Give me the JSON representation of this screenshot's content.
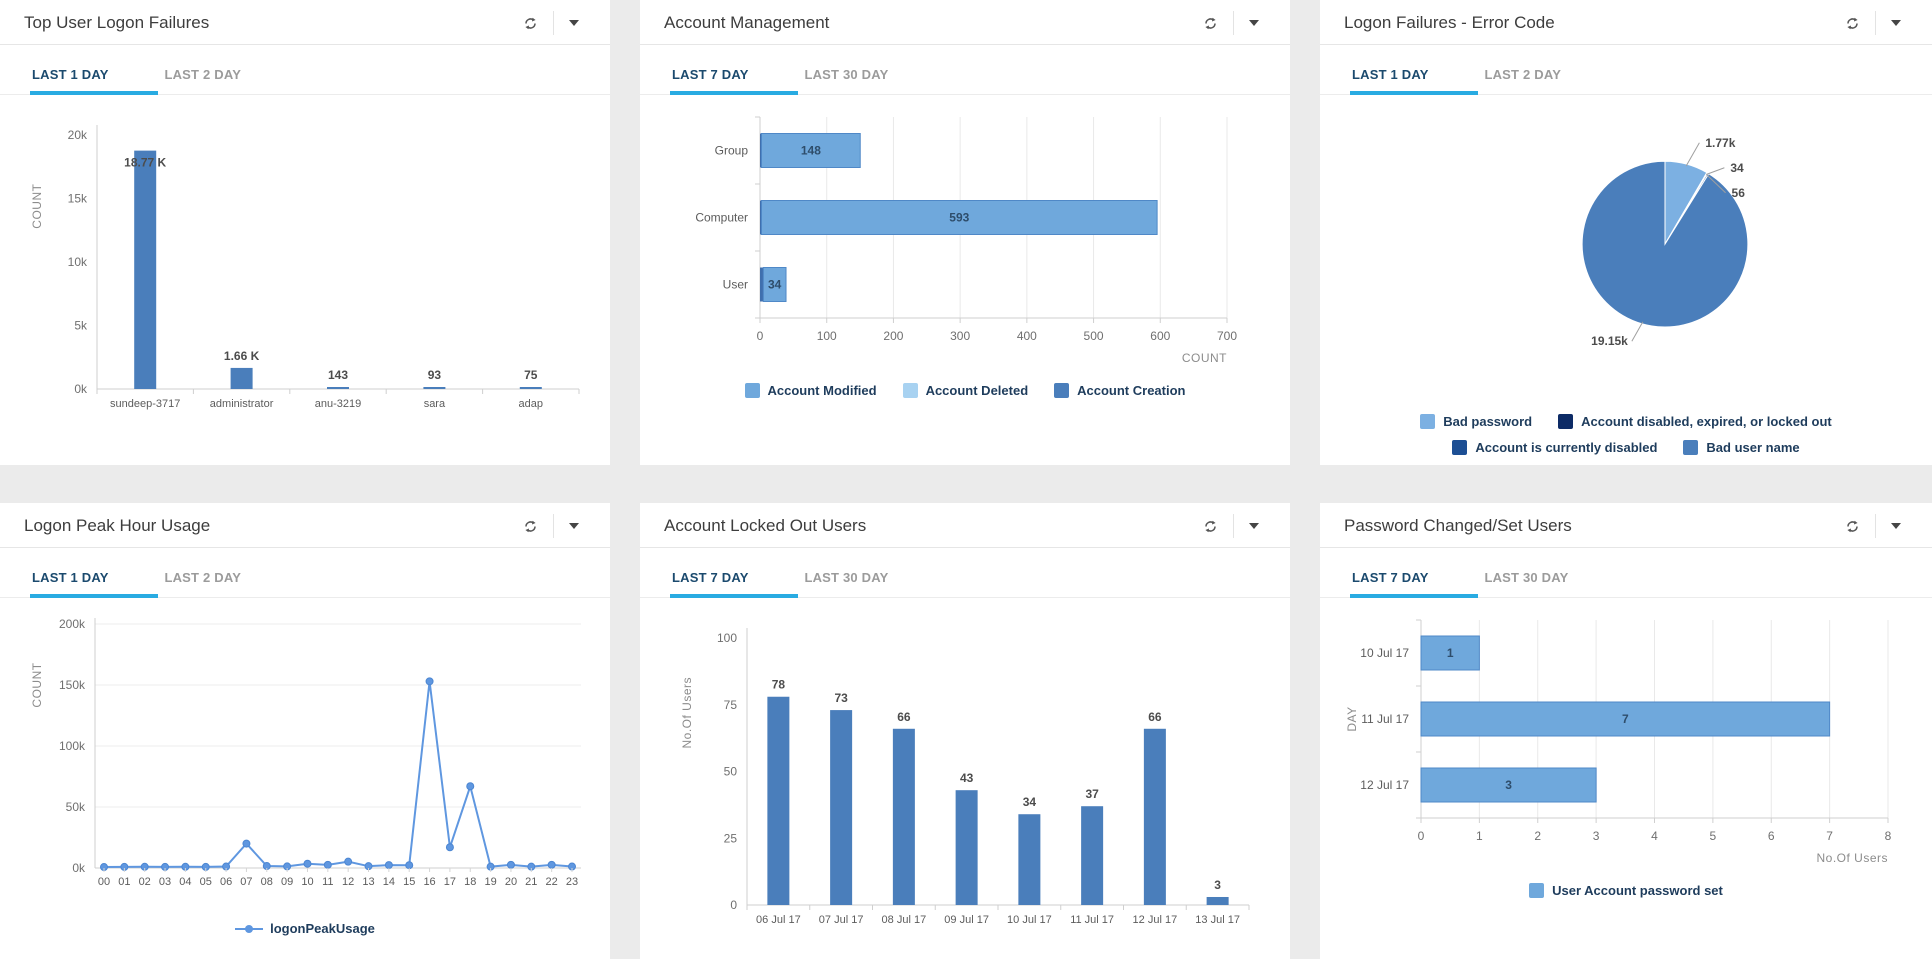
{
  "page": {
    "background": "#ebebeb"
  },
  "icons": {
    "refresh": "refresh-icon",
    "collapse": "chevron-down-icon"
  },
  "panels": [
    {
      "id": "top-user-logon-failures",
      "title": "Top User Logon Failures",
      "tabs": [
        {
          "label": "LAST 1 DAY",
          "active": true
        },
        {
          "label": "LAST 2 DAY",
          "active": false
        }
      ],
      "chart_data": {
        "type": "bar",
        "categories": [
          "sundeep-3717",
          "administrator",
          "anu-3219",
          "sara",
          "adap"
        ],
        "values": [
          18770,
          1660,
          143,
          93,
          75
        ],
        "value_labels": [
          "18.77 K",
          "1.66 K",
          "143",
          "93",
          "75"
        ],
        "ylabel": "COUNT",
        "yticks": [
          "0k",
          "5k",
          "10k",
          "15k",
          "20k"
        ],
        "ylim": [
          0,
          20000
        ],
        "bar_color": "#4a7ebb"
      }
    },
    {
      "id": "account-management",
      "title": "Account Management",
      "tabs": [
        {
          "label": "LAST 7 DAY",
          "active": true
        },
        {
          "label": "LAST 30 DAY",
          "active": false
        }
      ],
      "chart_data": {
        "type": "hbar-stacked",
        "categories": [
          "Group",
          "Computer",
          "User"
        ],
        "series": [
          {
            "name": "Account Creation",
            "color": "#3f6fae",
            "values": [
              2,
              1,
              5
            ]
          },
          {
            "name": "Account Modified",
            "color": "#6fa8dc",
            "border": "#4f88c7",
            "values": [
              148,
              593,
              34
            ]
          }
        ],
        "xticks": [
          0,
          100,
          200,
          300,
          400,
          500,
          600,
          700
        ],
        "xlim": [
          0,
          700
        ],
        "xlabel": "COUNT",
        "legend": [
          {
            "label": "Account Modified",
            "color": "#6fa8dc"
          },
          {
            "label": "Account Deleted",
            "color": "#a8d2f1"
          },
          {
            "label": "Account Creation",
            "color": "#4a7ebb"
          }
        ]
      }
    },
    {
      "id": "logon-failures-error-code",
      "title": "Logon Failures - Error Code",
      "tabs": [
        {
          "label": "LAST 1 DAY",
          "active": true
        },
        {
          "label": "LAST 2 DAY",
          "active": false
        }
      ],
      "chart_data": {
        "type": "pie",
        "slices": [
          {
            "label": "Bad password",
            "value": 1770,
            "display": "1.77k",
            "color": "#7cb0e2"
          },
          {
            "label": "Account disabled, expired, or locked out",
            "value": 34,
            "display": "34",
            "color": "#0d2b66"
          },
          {
            "label": "Account is currently disabled",
            "value": 56,
            "display": "56",
            "color": "#1d4f94"
          },
          {
            "label": "Bad user name",
            "value": 19150,
            "display": "19.15k",
            "color": "#4a7ebb"
          }
        ],
        "legend": [
          {
            "label": "Bad password",
            "color": "#7cb0e2"
          },
          {
            "label": "Account disabled, expired, or locked out",
            "color": "#0d2b66"
          },
          {
            "label": "Account is currently disabled",
            "color": "#1d4f94"
          },
          {
            "label": "Bad user name",
            "color": "#4a7ebb"
          }
        ]
      }
    },
    {
      "id": "logon-peak-hour-usage",
      "title": "Logon Peak Hour Usage",
      "tabs": [
        {
          "label": "LAST 1 DAY",
          "active": true
        },
        {
          "label": "LAST 2 DAY",
          "active": false
        }
      ],
      "chart_data": {
        "type": "line",
        "x": [
          "00",
          "01",
          "02",
          "03",
          "04",
          "05",
          "06",
          "07",
          "08",
          "09",
          "10",
          "11",
          "12",
          "13",
          "14",
          "15",
          "16",
          "17",
          "18",
          "19",
          "20",
          "21",
          "22",
          "23"
        ],
        "values": [
          800,
          900,
          1000,
          900,
          1000,
          900,
          1200,
          20000,
          1600,
          1300,
          3500,
          2600,
          5200,
          1500,
          2400,
          2300,
          153000,
          17000,
          67000,
          1100,
          2600,
          1100,
          2600,
          1200
        ],
        "ylabel": "COUNT",
        "yticks": [
          "0k",
          "50k",
          "100k",
          "150k",
          "200k"
        ],
        "ylim": [
          0,
          200000
        ],
        "line_color": "#5f97e0",
        "legend": [
          {
            "label": "logonPeakUsage",
            "color": "#5f97e0",
            "marker": "line-dot"
          }
        ]
      }
    },
    {
      "id": "account-locked-out-users",
      "title": "Account Locked Out Users",
      "tabs": [
        {
          "label": "LAST 7 DAY",
          "active": true
        },
        {
          "label": "LAST 30 DAY",
          "active": false
        }
      ],
      "chart_data": {
        "type": "bar",
        "categories": [
          "06 Jul 17",
          "07 Jul 17",
          "08 Jul 17",
          "09 Jul 17",
          "10 Jul 17",
          "11 Jul 17",
          "12 Jul 17",
          "13 Jul 17"
        ],
        "values": [
          78,
          73,
          66,
          43,
          34,
          37,
          66,
          3
        ],
        "value_labels": [
          "78",
          "73",
          "66",
          "43",
          "34",
          "37",
          "66",
          "3"
        ],
        "ylabel": "No.Of Users",
        "yticks": [
          "0",
          "25",
          "50",
          "75",
          "100"
        ],
        "ylim": [
          0,
          100
        ],
        "bar_color": "#4a7ebb"
      }
    },
    {
      "id": "password-changed-set-users",
      "title": "Password Changed/Set Users",
      "tabs": [
        {
          "label": "LAST 7 DAY",
          "active": true
        },
        {
          "label": "LAST 30 DAY",
          "active": false
        }
      ],
      "chart_data": {
        "type": "hbar",
        "categories": [
          "10 Jul 17",
          "11 Jul 17",
          "12 Jul 17"
        ],
        "values": [
          1,
          7,
          3
        ],
        "value_labels": [
          "1",
          "7",
          "3"
        ],
        "xticks": [
          0,
          1,
          2,
          3,
          4,
          5,
          6,
          7,
          8
        ],
        "xlim": [
          0,
          8
        ],
        "xlabel": "No.Of Users",
        "ylabel": "DAY",
        "bar_color": "#6fa8dc",
        "bar_border": "#4f88c7",
        "legend": [
          {
            "label": "User Account password set",
            "color": "#6fa8dc"
          }
        ]
      }
    }
  ]
}
